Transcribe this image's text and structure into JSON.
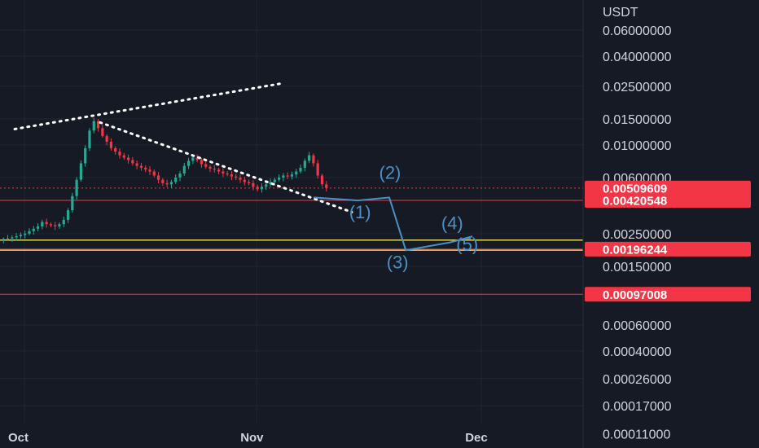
{
  "chart_data": {
    "type": "candlestick",
    "currency": "USDT",
    "y_scale": "log",
    "grid": true,
    "y_ticks": [
      {
        "label": "0.06000000",
        "value": 0.06
      },
      {
        "label": "0.04000000",
        "value": 0.04
      },
      {
        "label": "0.02500000",
        "value": 0.025
      },
      {
        "label": "0.01500000",
        "value": 0.015
      },
      {
        "label": "0.01000000",
        "value": 0.01
      },
      {
        "label": "0.00600000",
        "value": 0.006
      },
      {
        "label": "0.00250000",
        "value": 0.0025
      },
      {
        "label": "0.00150000",
        "value": 0.0015
      },
      {
        "label": "0.00060000",
        "value": 0.0006
      },
      {
        "label": "0.00040000",
        "value": 0.0004
      },
      {
        "label": "0.00026000",
        "value": 0.00026
      },
      {
        "label": "0.00017000",
        "value": 0.00017
      },
      {
        "label": "0.00011000",
        "value": 0.00011
      }
    ],
    "x_ticks": [
      {
        "label": "Oct",
        "day": 0
      },
      {
        "label": "Nov",
        "day": 31
      },
      {
        "label": "Dec",
        "day": 61
      }
    ],
    "price_badges": [
      {
        "label": "0.00509609",
        "value": 0.00509609,
        "color": "#f23645",
        "line": "dotted"
      },
      {
        "label": "0.00420548",
        "value": 0.00420548,
        "color": "#f23645",
        "line": "solid"
      },
      {
        "label": "0.00196244",
        "value": 0.00196244,
        "color": "#f23645",
        "line": "solid"
      },
      {
        "label": "0.00097008",
        "value": 0.00097008,
        "color": "#f23645",
        "line": "solid"
      }
    ],
    "yellow_lines": [
      0.00226,
      0.00193
    ],
    "series": {
      "closes": [
        0.0023,
        0.00232,
        0.00236,
        0.0024,
        0.00245,
        0.0025,
        0.0026,
        0.0027,
        0.0028,
        0.003,
        0.0029,
        0.00285,
        0.0028,
        0.0029,
        0.0031,
        0.0036,
        0.0045,
        0.0058,
        0.0075,
        0.0095,
        0.0125,
        0.0145,
        0.013,
        0.0115,
        0.0105,
        0.0095,
        0.009,
        0.0085,
        0.0082,
        0.0079,
        0.0075,
        0.0072,
        0.007,
        0.0068,
        0.0066,
        0.0062,
        0.0058,
        0.0055,
        0.0054,
        0.0056,
        0.006,
        0.0064,
        0.0072,
        0.0078,
        0.0082,
        0.0079,
        0.0074,
        0.0071,
        0.0069,
        0.0068,
        0.0066,
        0.0064,
        0.0063,
        0.0061,
        0.006,
        0.0058,
        0.0056,
        0.0055,
        0.0052,
        0.005,
        0.0052,
        0.0054,
        0.0056,
        0.0058,
        0.006,
        0.0062,
        0.0061,
        0.0063,
        0.0066,
        0.007,
        0.0078,
        0.0085,
        0.0075,
        0.0062,
        0.0054,
        0.0051
      ]
    },
    "trendlines": [
      {
        "style": "dotted",
        "color": "#ffffff",
        "from": {
          "day": -1.3,
          "price": 0.0128
        },
        "to": {
          "day": 34.5,
          "price": 0.0262
        }
      },
      {
        "style": "dotted",
        "color": "#ffffff",
        "from": {
          "day": 10.1,
          "price": 0.0142
        },
        "to": {
          "day": 43.7,
          "price": 0.0035
        }
      }
    ],
    "elliott_wave": {
      "color": "#4a90c4",
      "points": [
        {
          "day": 38.6,
          "price": 0.0044
        },
        {
          "day": 44.5,
          "price": 0.0042
        },
        {
          "day": 48.7,
          "price": 0.0044
        },
        {
          "day": 50.9,
          "price": 0.00193
        },
        {
          "day": 56.8,
          "price": 0.00218
        },
        {
          "day": 59.8,
          "price": 0.0024
        }
      ],
      "labels": [
        {
          "text": "(1)",
          "day": 44.8,
          "price": 0.00318
        },
        {
          "text": "(2)",
          "day": 48.8,
          "price": 0.0059
        },
        {
          "text": "(3)",
          "day": 49.8,
          "price": 0.00145
        },
        {
          "text": "(4)",
          "day": 57.1,
          "price": 0.00268
        },
        {
          "text": "(5)",
          "day": 59.1,
          "price": 0.00192
        }
      ]
    }
  }
}
